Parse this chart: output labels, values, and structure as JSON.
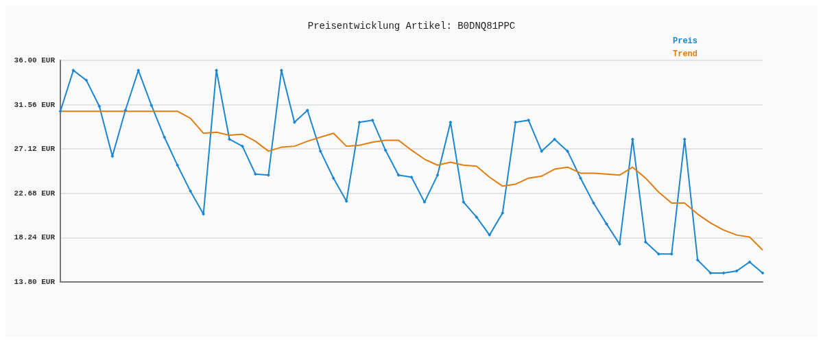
{
  "chart_data": {
    "type": "line",
    "title": "Preisentwicklung Artikel: B0DNQ81PPC",
    "categories": [
      null,
      null,
      null,
      null,
      null,
      null,
      null,
      null,
      null,
      null,
      null,
      null,
      null,
      null,
      null,
      null,
      null,
      null,
      null,
      null,
      null,
      null,
      null,
      null,
      null,
      null,
      null,
      null,
      null,
      null,
      null,
      null,
      null,
      null,
      null,
      null,
      null,
      null,
      null,
      null,
      null,
      null,
      null,
      null,
      null,
      null,
      null,
      null,
      null,
      null,
      null,
      null,
      null,
      null,
      null
    ],
    "series": [
      {
        "name": "Preis",
        "color": "#1a86d0",
        "marker": "diamond",
        "values": [
          30.9,
          35.0,
          34.0,
          31.4,
          26.4,
          31.0,
          35.0,
          31.5,
          28.3,
          25.5,
          22.9,
          20.6,
          35.0,
          28.1,
          27.4,
          24.6,
          24.5,
          35.0,
          29.8,
          31.0,
          26.9,
          24.2,
          21.9,
          29.8,
          30.0,
          27.0,
          24.5,
          24.3,
          21.8,
          24.5,
          29.8,
          21.8,
          20.3,
          18.5,
          20.7,
          29.8,
          30.0,
          26.9,
          28.1,
          26.9,
          24.2,
          21.7,
          19.6,
          17.6,
          28.1,
          17.8,
          16.6,
          16.6,
          28.1,
          16.0,
          14.7,
          14.7,
          14.9,
          15.8,
          14.7
        ]
      },
      {
        "name": "Trend",
        "color": "#e07d10",
        "marker": "none",
        "values": [
          30.9,
          30.9,
          30.9,
          30.9,
          30.9,
          30.9,
          30.9,
          30.9,
          30.9,
          30.9,
          30.2,
          28.7,
          28.8,
          28.5,
          28.6,
          27.9,
          26.9,
          27.3,
          27.4,
          27.9,
          28.3,
          28.7,
          27.4,
          27.5,
          27.8,
          28.0,
          28.0,
          27.0,
          26.1,
          25.5,
          25.8,
          25.5,
          25.4,
          24.3,
          23.4,
          23.6,
          24.2,
          24.4,
          25.1,
          25.3,
          24.7,
          24.7,
          24.6,
          24.5,
          25.3,
          24.2,
          22.8,
          21.7,
          21.7,
          20.6,
          19.7,
          19.0,
          18.5,
          18.3,
          17.0
        ]
      }
    ],
    "ylim": [
      13.8,
      36.0
    ],
    "yticks": [
      {
        "value": 13.8,
        "label": "13.80 EUR"
      },
      {
        "value": 18.24,
        "label": "18.24 EUR"
      },
      {
        "value": 22.68,
        "label": "22.68 EUR"
      },
      {
        "value": 27.12,
        "label": "27.12 EUR"
      },
      {
        "value": 31.56,
        "label": "31.56 EUR"
      },
      {
        "value": 36.0,
        "label": "36.00 EUR"
      }
    ],
    "grid": "y",
    "legend": "top right",
    "line_style": "solid"
  }
}
